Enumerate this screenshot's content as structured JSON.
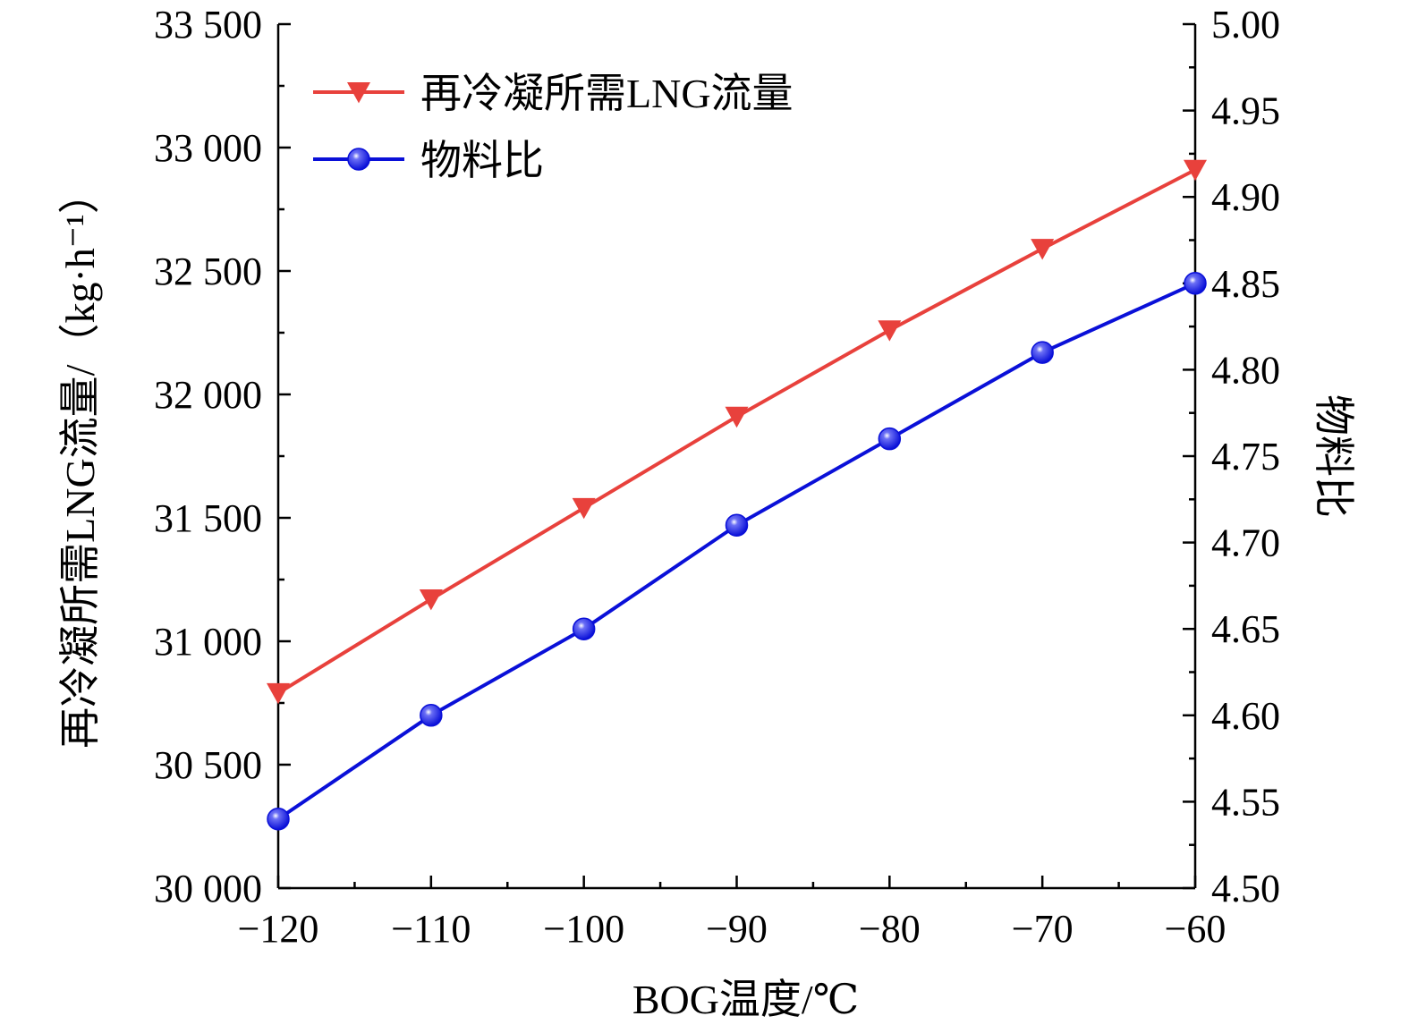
{
  "chart_data": {
    "type": "line",
    "x": [
      -120,
      -110,
      -100,
      -90,
      -80,
      -70,
      -60
    ],
    "x_tick_labels": [
      "−120",
      "−110",
      "−100",
      "−90",
      "−80",
      "−70",
      "−60"
    ],
    "xlabel": "BOG温度/℃",
    "xlim": [
      -120,
      -60
    ],
    "ylabel_left": "再冷凝所需LNG流量/（kg·h⁻¹）",
    "ylim_left": [
      30000,
      33500
    ],
    "y_left_ticks": [
      30000,
      30500,
      31000,
      31500,
      32000,
      32500,
      33000,
      33500
    ],
    "y_left_tick_labels": [
      "30 000",
      "30 500",
      "31 000",
      "31 500",
      "32 000",
      "32 500",
      "33 000",
      "33 500"
    ],
    "ylabel_right": "物料比",
    "ylim_right": [
      4.5,
      5.0
    ],
    "y_right_ticks": [
      4.5,
      4.55,
      4.6,
      4.65,
      4.7,
      4.75,
      4.8,
      4.85,
      4.9,
      4.95,
      5.0
    ],
    "y_right_tick_labels": [
      "4.50",
      "4.55",
      "4.60",
      "4.65",
      "4.70",
      "4.75",
      "4.80",
      "4.85",
      "4.90",
      "4.95",
      "5.00"
    ],
    "series": [
      {
        "name": "再冷凝所需LNG流量",
        "axis": "left",
        "color": "#e8413c",
        "marker": "triangle-down",
        "values": [
          30790,
          31170,
          31540,
          31910,
          32260,
          32590,
          32910
        ]
      },
      {
        "name": "物料比",
        "axis": "right",
        "color": "#0a10d8",
        "marker": "circle",
        "values": [
          4.54,
          4.6,
          4.65,
          4.71,
          4.76,
          4.81,
          4.85
        ]
      }
    ],
    "legend_position": "top-left",
    "grid": false
  }
}
